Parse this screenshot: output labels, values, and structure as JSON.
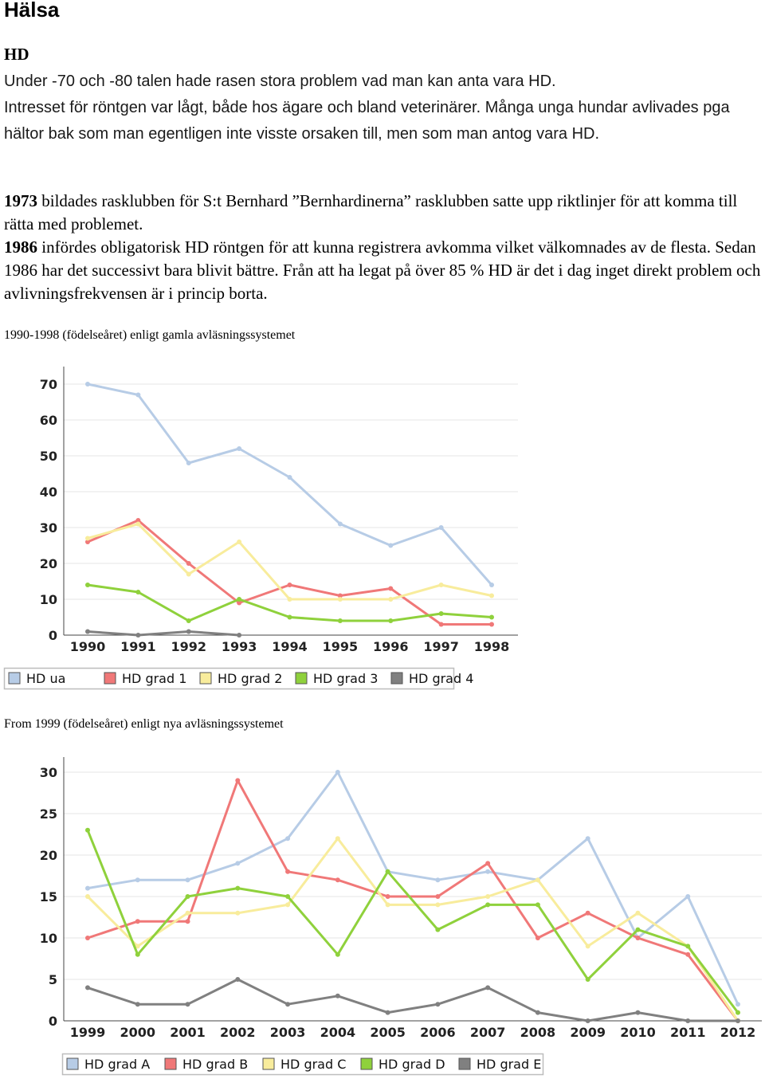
{
  "heading": "Hälsa",
  "subheading": "HD",
  "intro": [
    "Under -70 och -80 talen hade rasen stora problem vad man kan anta vara HD.",
    "Intresset för röntgen var lågt, både hos ägare och bland veterinärer. Många unga hundar avlivades pga hältor bak som man egentligen inte visste orsaken till, men som man antog vara HD."
  ],
  "history": [
    {
      "year": "1973",
      "text": " bildades rasklubben för S:t Bernhard ”Bernhardinerna” rasklubben satte upp riktlinjer för att komma till rätta med problemet."
    },
    {
      "year": "1986",
      "text": " infördes obligatorisk HD röntgen för att kunna registrera avkomma vilket välkomnades av de flesta. Sedan 1986 har det successivt bara blivit bättre. Från att ha legat på över 85 % HD är det i dag inget direkt problem och avlivningsfrekvensen är i princip borta."
    }
  ],
  "caption1": "1990-1998 (födelseåret) enligt gamla avläsningssystemet",
  "caption2": "From 1999 (födelseåret) enligt nya avläsningssystemet",
  "chart_data": [
    {
      "type": "line",
      "x": [
        "1990",
        "1991",
        "1992",
        "1993",
        "1994",
        "1995",
        "1996",
        "1997",
        "1998"
      ],
      "ylim": [
        0,
        70
      ],
      "yticks": [
        0,
        10,
        20,
        30,
        40,
        50,
        60,
        70
      ],
      "legend_position": "bottom",
      "series": [
        {
          "name": "HD ua",
          "color": "#b7cce6",
          "values": [
            70,
            67,
            48,
            52,
            44,
            31,
            25,
            30,
            14
          ]
        },
        {
          "name": "HD grad 1",
          "color": "#f07878",
          "values": [
            26,
            32,
            20,
            9,
            14,
            11,
            13,
            3,
            3
          ]
        },
        {
          "name": "HD grad 2",
          "color": "#f8ec9c",
          "values": [
            27,
            31,
            17,
            26,
            10,
            10,
            10,
            14,
            11
          ]
        },
        {
          "name": "HD grad 3",
          "color": "#8fd13c",
          "values": [
            14,
            12,
            4,
            10,
            5,
            4,
            4,
            6,
            5
          ]
        },
        {
          "name": "HD grad 4",
          "color": "#808080",
          "values": [
            1,
            0,
            1,
            0,
            null,
            null,
            null,
            null,
            null
          ]
        }
      ]
    },
    {
      "type": "line",
      "x": [
        "1999",
        "2000",
        "2001",
        "2002",
        "2003",
        "2004",
        "2005",
        "2006",
        "2007",
        "2008",
        "2009",
        "2010",
        "2011",
        "2012"
      ],
      "ylim": [
        0,
        30
      ],
      "yticks": [
        0,
        5,
        10,
        15,
        20,
        25,
        30
      ],
      "legend_position": "bottom",
      "series": [
        {
          "name": "HD grad A",
          "color": "#b7cce6",
          "values": [
            16,
            17,
            17,
            19,
            22,
            30,
            18,
            17,
            18,
            17,
            22,
            10,
            15,
            2
          ]
        },
        {
          "name": "HD grad B",
          "color": "#f07878",
          "values": [
            10,
            12,
            12,
            29,
            18,
            17,
            15,
            15,
            19,
            10,
            13,
            10,
            8,
            0
          ]
        },
        {
          "name": "HD grad C",
          "color": "#f8ec9c",
          "values": [
            15,
            9,
            13,
            13,
            14,
            22,
            14,
            14,
            15,
            17,
            9,
            13,
            9,
            0
          ]
        },
        {
          "name": "HD grad D",
          "color": "#8fd13c",
          "values": [
            23,
            8,
            15,
            16,
            15,
            8,
            18,
            11,
            14,
            14,
            5,
            11,
            9,
            1
          ]
        },
        {
          "name": "HD grad E",
          "color": "#808080",
          "values": [
            4,
            2,
            2,
            5,
            2,
            3,
            1,
            2,
            4,
            1,
            0,
            1,
            0,
            0
          ]
        }
      ]
    }
  ]
}
